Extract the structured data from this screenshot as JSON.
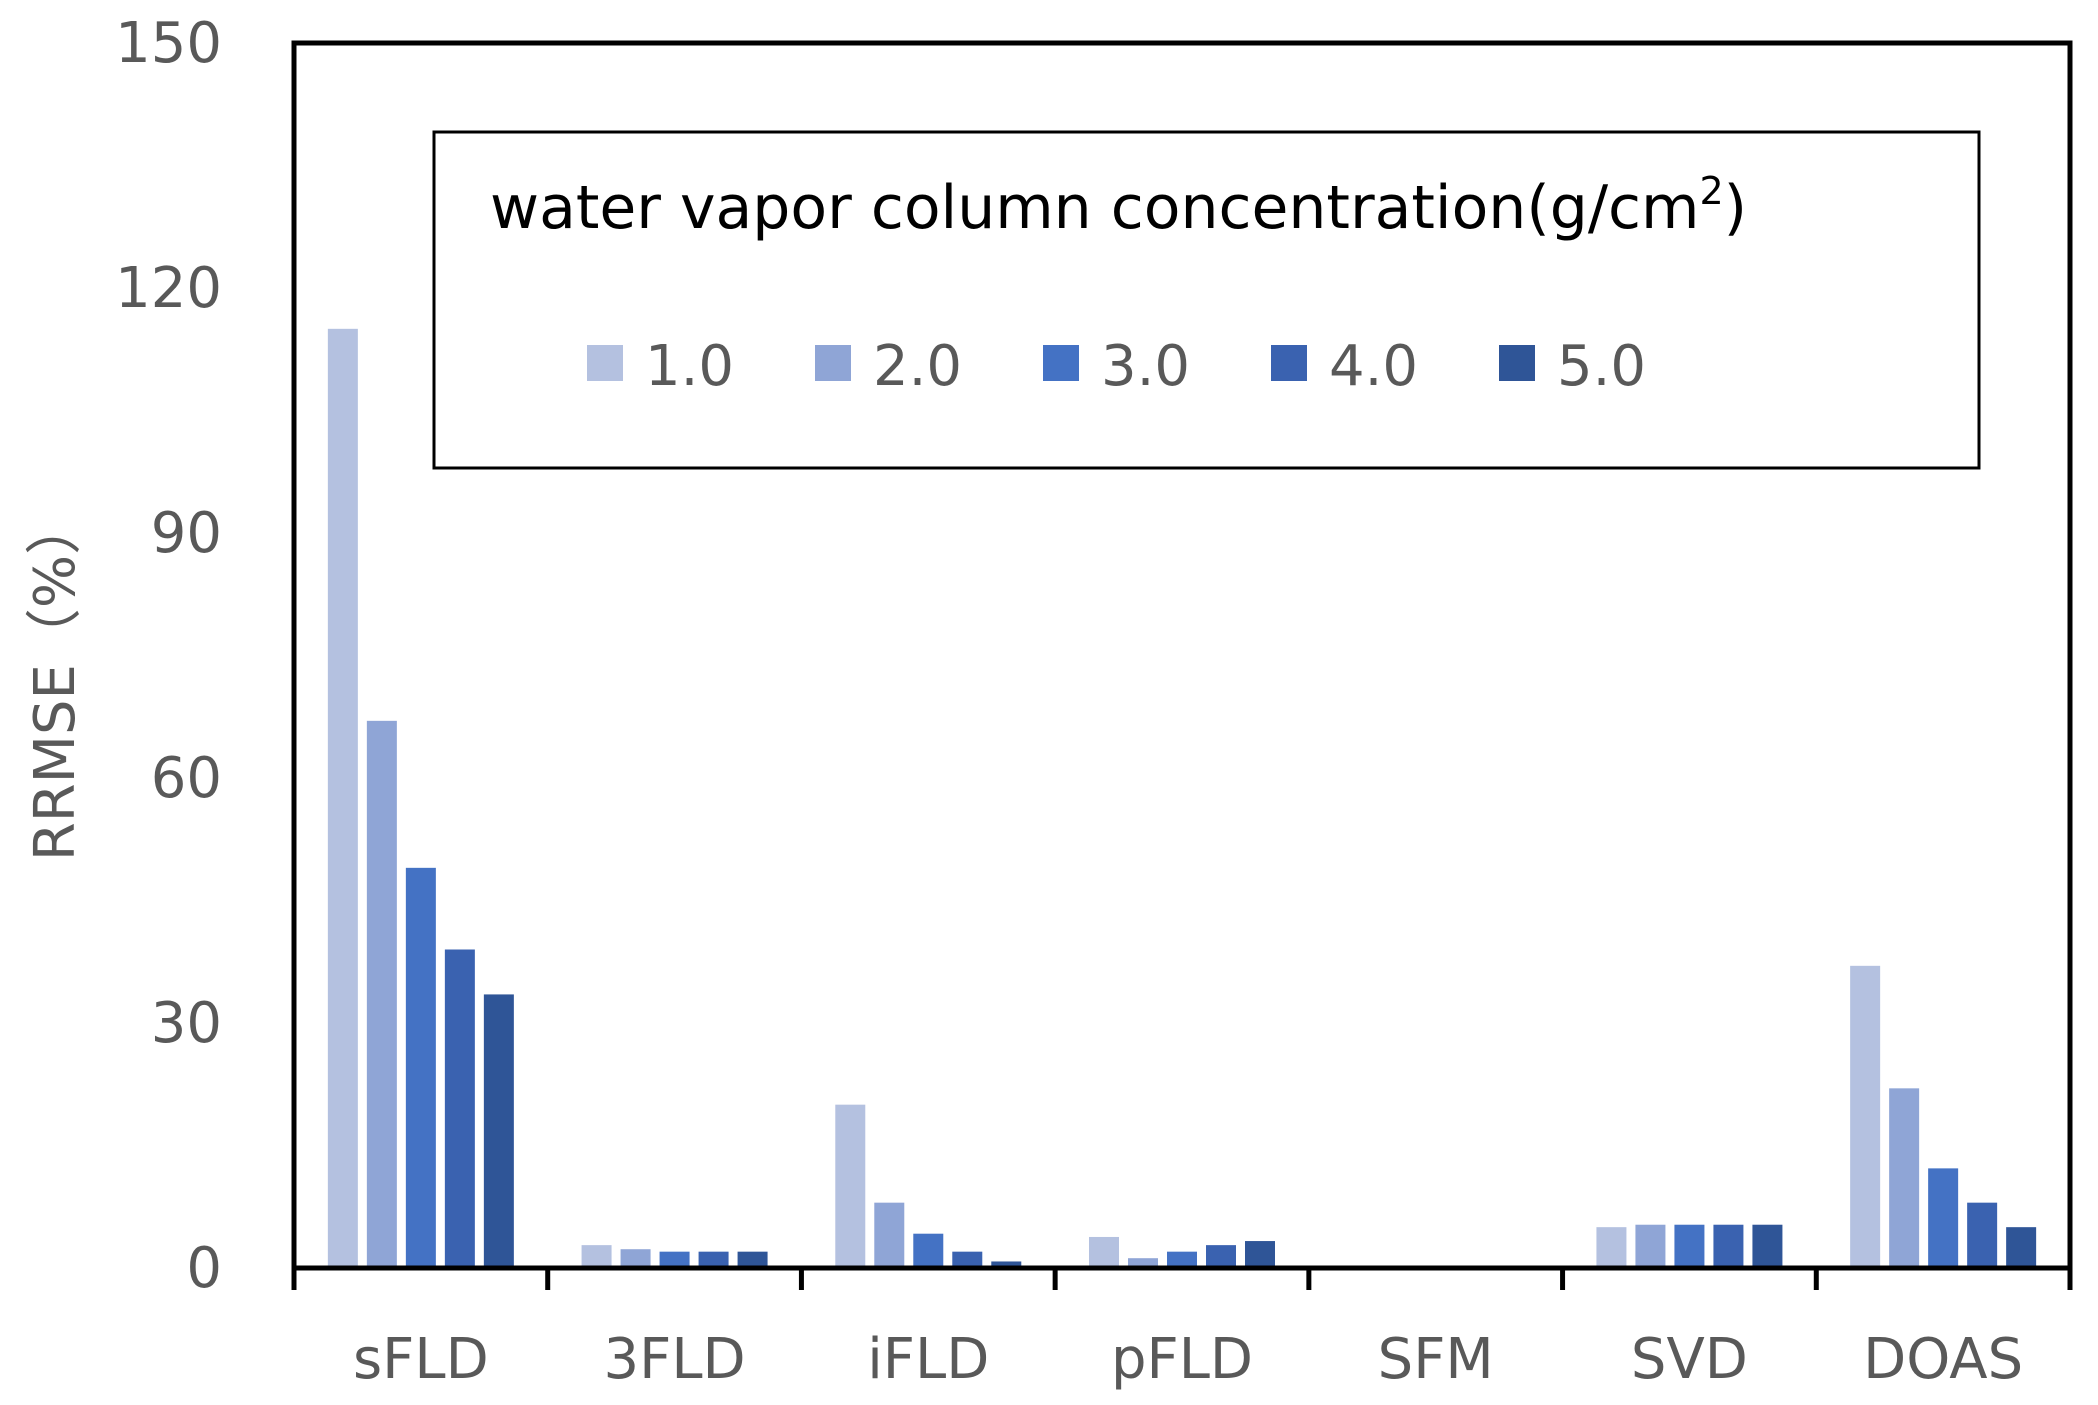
{
  "chart_data": {
    "type": "bar",
    "title": "",
    "xlabel": "",
    "ylabel": "RRMSE（%）",
    "ylim": [
      0,
      150
    ],
    "yticks": [
      "0",
      "30",
      "60",
      "90",
      "120",
      "150"
    ],
    "yticks_values": [
      0,
      30,
      60,
      90,
      120,
      150
    ],
    "grid": false,
    "legend": {
      "title": "water vapor column concentration(g/cm",
      "title_superscript": "2",
      "title_suffix": ")",
      "placement": "top-center"
    },
    "categories": [
      "sFLD",
      "3FLD",
      "iFLD",
      "pFLD",
      "SFM",
      "SVD",
      "DOAS"
    ],
    "series": [
      {
        "name": "1.0",
        "color": "#b4c1e0",
        "values": [
          115,
          2.8,
          20,
          3.8,
          0.1,
          5,
          37
        ]
      },
      {
        "name": "2.0",
        "color": "#8fa5d6",
        "values": [
          67,
          2.3,
          8,
          1.2,
          0.1,
          5.3,
          22
        ]
      },
      {
        "name": "3.0",
        "color": "#4472c4",
        "values": [
          49,
          2.0,
          4.2,
          2.0,
          0.1,
          5.3,
          12.2
        ]
      },
      {
        "name": "4.0",
        "color": "#3a62b0",
        "values": [
          39,
          2.0,
          2.0,
          2.8,
          0.1,
          5.3,
          8
        ]
      },
      {
        "name": "5.0",
        "color": "#2f5597",
        "values": [
          33.5,
          2.0,
          0.8,
          3.3,
          0.1,
          5.3,
          5
        ]
      }
    ]
  }
}
